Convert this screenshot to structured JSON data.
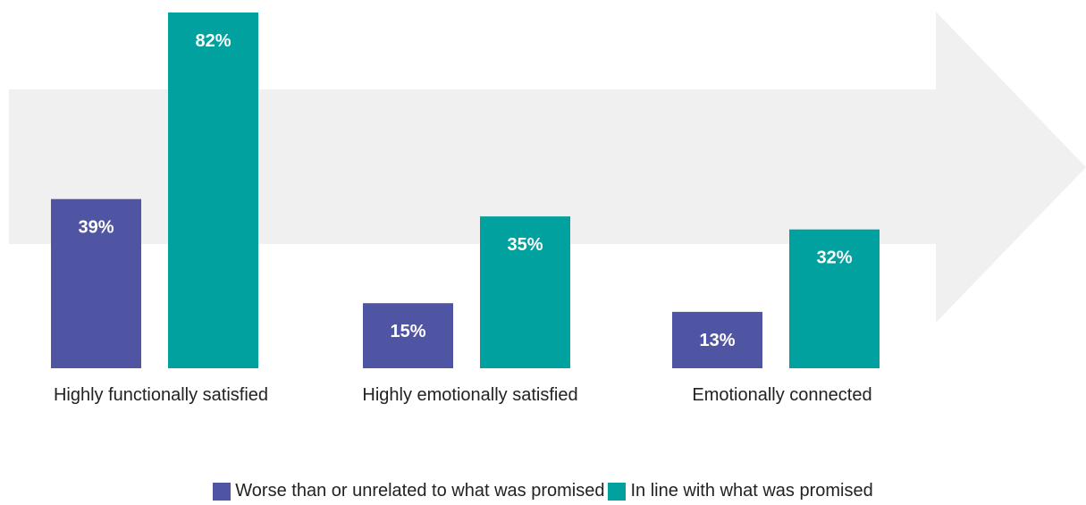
{
  "chart_data": {
    "type": "bar",
    "categories": [
      "Highly functionally satisfied",
      "Highly emotionally satisfied",
      "Emotionally connected"
    ],
    "series": [
      {
        "name": "Worse than or unrelated to what was promised",
        "values": [
          39,
          15,
          13
        ],
        "labels": [
          "39%",
          "15%",
          "13%"
        ],
        "color": "#4f55a3"
      },
      {
        "name": "In line with what was promised",
        "values": [
          82,
          35,
          32
        ],
        "labels": [
          "82%",
          "35%",
          "32%"
        ],
        "color": "#00a19f"
      }
    ],
    "unit": "%",
    "ylim": [
      0,
      82
    ],
    "grid": false,
    "legend_position": "bottom",
    "background_shape": "arrow-right",
    "background_color": "#f0f0f0"
  }
}
